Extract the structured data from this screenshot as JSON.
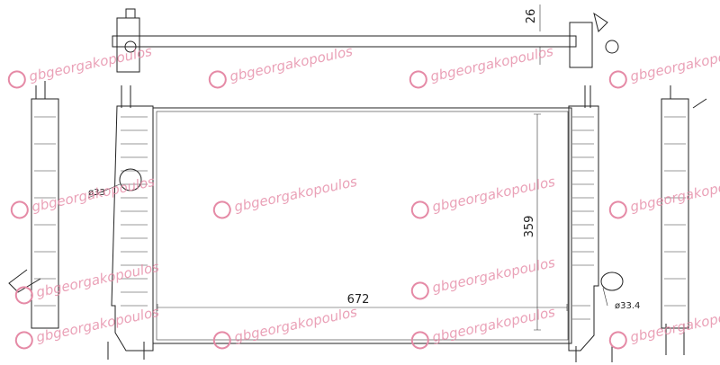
{
  "dimensions": {
    "top_bar": 26,
    "height": 359,
    "width": 672
  },
  "labels": {
    "inlet": "ø33",
    "outlet": "ø33.4"
  },
  "watermark": "gbgeorgakopoulos"
}
